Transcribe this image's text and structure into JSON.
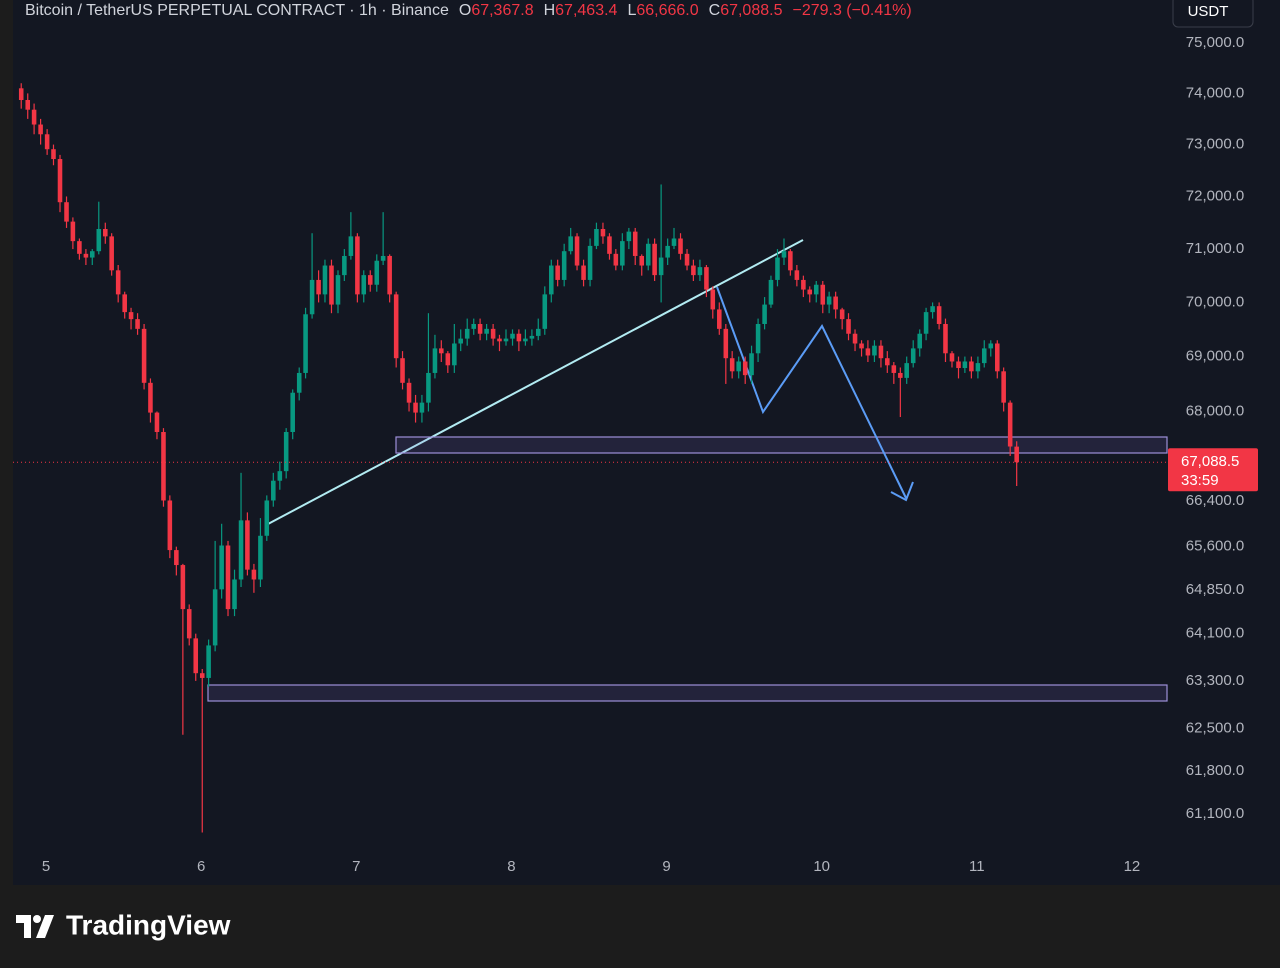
{
  "chart_data": {
    "type": "candlestick",
    "title": "Bitcoin / TetherUS PERPETUAL CONTRACT · 1h · Binance",
    "ohlc": [
      {
        "key": "O",
        "value": "67,367.8"
      },
      {
        "key": "H",
        "value": "67,463.4"
      },
      {
        "key": "L",
        "value": "66,666.0"
      },
      {
        "key": "C",
        "value": "67,088.5"
      }
    ],
    "change": "−279.3 (−0.41%)",
    "currency": "USDT",
    "countdown": "33:59",
    "up_color": "#089981",
    "down_color": "#f23645",
    "log_scale": true,
    "grid": false,
    "xlim": [
      4.787,
      12.226
    ],
    "xticks": [
      5,
      6,
      7,
      8,
      9,
      10,
      11,
      12
    ],
    "ylim": [
      60550,
      75860
    ],
    "yticks": [
      {
        "value": 75000,
        "label": "75,000.0"
      },
      {
        "value": 74000,
        "label": "74,000.0"
      },
      {
        "value": 73000,
        "label": "73,000.0"
      },
      {
        "value": 72000,
        "label": "72,000.0"
      },
      {
        "value": 71000,
        "label": "71,000.0"
      },
      {
        "value": 70000,
        "label": "70,000.0"
      },
      {
        "value": 69000,
        "label": "69,000.0"
      },
      {
        "value": 68000,
        "label": "68,000.0"
      },
      {
        "value": 66400,
        "label": "66,400.0"
      },
      {
        "value": 65600,
        "label": "65,600.0"
      },
      {
        "value": 64850,
        "label": "64,850.0"
      },
      {
        "value": 64100,
        "label": "64,100.0"
      },
      {
        "value": 63300,
        "label": "63,300.0"
      },
      {
        "value": 62500,
        "label": "62,500.0"
      },
      {
        "value": 61800,
        "label": "61,800.0"
      },
      {
        "value": 61100,
        "label": "61,100.0"
      }
    ],
    "x": [
      4.84,
      4.882,
      4.923,
      4.965,
      5.007,
      5.048,
      5.09,
      5.132,
      5.173,
      5.215,
      5.257,
      5.298,
      5.34,
      5.382,
      5.423,
      5.465,
      5.507,
      5.548,
      5.59,
      5.632,
      5.673,
      5.715,
      5.757,
      5.798,
      5.84,
      5.882,
      5.923,
      5.965,
      6.007,
      6.048,
      6.09,
      6.132,
      6.173,
      6.215,
      6.257,
      6.298,
      6.34,
      6.382,
      6.423,
      6.465,
      6.507,
      6.548,
      6.59,
      6.632,
      6.673,
      6.715,
      6.757,
      6.798,
      6.84,
      6.882,
      6.923,
      6.965,
      7.007,
      7.048,
      7.09,
      7.132,
      7.173,
      7.215,
      7.257,
      7.298,
      7.34,
      7.382,
      7.423,
      7.465,
      7.507,
      7.548,
      7.59,
      7.632,
      7.673,
      7.715,
      7.757,
      7.798,
      7.84,
      7.882,
      7.923,
      7.965,
      8.007,
      8.048,
      8.09,
      8.132,
      8.173,
      8.215,
      8.257,
      8.298,
      8.34,
      8.382,
      8.423,
      8.465,
      8.507,
      8.548,
      8.59,
      8.632,
      8.673,
      8.715,
      8.757,
      8.798,
      8.84,
      8.882,
      8.923,
      8.965,
      9.007,
      9.048,
      9.09,
      9.132,
      9.173,
      9.215,
      9.257,
      9.298,
      9.34,
      9.382,
      9.423,
      9.465,
      9.507,
      9.548,
      9.59,
      9.632,
      9.673,
      9.715,
      9.757,
      9.798,
      9.84,
      9.882,
      9.923,
      9.965,
      10.007,
      10.048,
      10.09,
      10.132,
      10.173,
      10.215,
      10.257,
      10.298,
      10.34,
      10.382,
      10.423,
      10.465,
      10.507,
      10.548,
      10.59,
      10.632,
      10.673,
      10.715,
      10.757,
      10.798,
      10.84,
      10.882,
      10.923,
      10.965,
      11.007,
      11.048,
      11.09,
      11.132,
      11.173,
      11.215,
      11.257
    ],
    "open": [
      74100,
      73870,
      73680,
      73390,
      73200,
      72910,
      72720,
      71890,
      71520,
      71150,
      70910,
      70840,
      70960,
      71380,
      71240,
      70600,
      70150,
      69820,
      69690,
      69510,
      68520,
      67980,
      67630,
      66410,
      65540,
      65280,
      64520,
      64020,
      63430,
      63350,
      63900,
      64860,
      65620,
      64520,
      65030,
      66060,
      65200,
      65030,
      65790,
      66410,
      66760,
      66930,
      67630,
      68340,
      68700,
      69780,
      70420,
      70150,
      70690,
      69960,
      70510,
      70870,
      71240,
      70150,
      70510,
      70330,
      70780,
      70870,
      70150,
      68970,
      68520,
      68160,
      67980,
      68160,
      68700,
      69150,
      69060,
      68840,
      69240,
      69330,
      69510,
      69600,
      69420,
      69510,
      69330,
      69280,
      69330,
      69420,
      69280,
      69330,
      69380,
      69510,
      70150,
      70690,
      70420,
      70960,
      71240,
      70690,
      70420,
      71060,
      71380,
      71240,
      70910,
      70690,
      71150,
      71330,
      70870,
      70690,
      71100,
      70510,
      70840,
      71060,
      71200,
      70910,
      70690,
      70510,
      70660,
      70240,
      69870,
      69510,
      68970,
      68730,
      68910,
      68660,
      69060,
      69600,
      69960,
      70420,
      70840,
      70960,
      70600,
      70420,
      70240,
      70150,
      70330,
      69960,
      70110,
      69870,
      69690,
      69420,
      69240,
      69150,
      69020,
      69200,
      68970,
      68840,
      68700,
      68610,
      68880,
      69150,
      69420,
      69820,
      69930,
      69600,
      69060,
      68910,
      68790,
      68910,
      68730,
      68880,
      69150,
      69240,
      68730,
      68160,
      67367.8
    ],
    "high": [
      74200,
      74000,
      73800,
      73500,
      73300,
      73000,
      72800,
      72000,
      71600,
      71200,
      71000,
      71000,
      71900,
      71500,
      71300,
      70700,
      70200,
      69900,
      69800,
      69600,
      68600,
      68000,
      67700,
      66500,
      65600,
      65300,
      64600,
      64100,
      63500,
      64000,
      65700,
      66000,
      65700,
      65200,
      66900,
      66200,
      65300,
      66100,
      66500,
      66900,
      67100,
      67700,
      68400,
      68800,
      69900,
      71300,
      70600,
      70800,
      70800,
      70600,
      71000,
      71700,
      71300,
      70600,
      70600,
      70900,
      71700,
      70900,
      70200,
      69100,
      68600,
      68300,
      68300,
      69800,
      69400,
      69300,
      69100,
      69600,
      69500,
      69700,
      69700,
      69700,
      69600,
      69600,
      69400,
      69500,
      69500,
      69500,
      69500,
      69500,
      69700,
      70300,
      70800,
      70800,
      71100,
      71400,
      71300,
      70800,
      71200,
      71500,
      71500,
      71300,
      71000,
      71300,
      71400,
      71400,
      70900,
      71200,
      71200,
      72230,
      71200,
      71400,
      71300,
      71000,
      70800,
      70800,
      70700,
      70300,
      70000,
      69600,
      69100,
      69000,
      69000,
      69200,
      69700,
      70100,
      70500,
      71000,
      71200,
      71000,
      70700,
      70500,
      70300,
      70400,
      70400,
      70200,
      70200,
      69900,
      69800,
      69500,
      69300,
      69300,
      69300,
      69300,
      69100,
      68900,
      68800,
      69000,
      69300,
      69500,
      69900,
      70000,
      70000,
      69700,
      69100,
      69000,
      69000,
      69000,
      69000,
      69300,
      69300,
      69300,
      68800,
      68200,
      67463.4
    ],
    "low": [
      73700,
      73500,
      73200,
      73000,
      72800,
      72600,
      71700,
      71400,
      71000,
      70800,
      70700,
      70700,
      70900,
      71100,
      70500,
      70000,
      69700,
      69500,
      69400,
      68400,
      67800,
      67500,
      66300,
      65400,
      65100,
      62400,
      63900,
      63300,
      60800,
      63200,
      63800,
      64700,
      64400,
      64400,
      64900,
      65100,
      64800,
      64900,
      65700,
      66300,
      66600,
      66800,
      67500,
      68200,
      68600,
      69700,
      70000,
      70000,
      69800,
      69800,
      70400,
      70800,
      70000,
      70000,
      70200,
      70200,
      70700,
      70000,
      68800,
      68400,
      68000,
      67800,
      67800,
      68000,
      68600,
      68900,
      68700,
      68700,
      69100,
      69200,
      69400,
      69300,
      69300,
      69200,
      69100,
      69200,
      69200,
      69100,
      69200,
      69200,
      69300,
      69400,
      70000,
      70300,
      70300,
      70900,
      70600,
      70300,
      70300,
      71000,
      71100,
      70800,
      70600,
      70600,
      71000,
      70700,
      70500,
      70600,
      70400,
      70000,
      70700,
      71000,
      70800,
      70600,
      70400,
      70400,
      70100,
      69700,
      69400,
      68500,
      68600,
      68600,
      68500,
      68500,
      68900,
      69500,
      69900,
      70300,
      70700,
      70500,
      70300,
      70100,
      70000,
      70000,
      69800,
      69800,
      69700,
      69500,
      69300,
      69100,
      69000,
      68900,
      68900,
      68800,
      68700,
      68500,
      67900,
      68500,
      68800,
      69000,
      69300,
      69700,
      69500,
      68900,
      68800,
      68600,
      68700,
      68600,
      68600,
      68800,
      69000,
      68600,
      68000,
      67200,
      66666
    ],
    "close": [
      73870,
      73680,
      73390,
      73200,
      72910,
      72720,
      71890,
      71520,
      71150,
      70910,
      70840,
      70960,
      71380,
      71240,
      70600,
      70150,
      69820,
      69690,
      69510,
      68520,
      67980,
      67630,
      66410,
      65540,
      65280,
      64520,
      64020,
      63430,
      63350,
      63900,
      64860,
      65620,
      64520,
      65030,
      66060,
      65200,
      65030,
      65790,
      66410,
      66760,
      66930,
      67630,
      68340,
      68700,
      69780,
      70420,
      70150,
      70690,
      69960,
      70510,
      70870,
      71240,
      70150,
      70510,
      70330,
      70780,
      70870,
      70150,
      68970,
      68520,
      68160,
      67980,
      68160,
      68700,
      69150,
      69060,
      68840,
      69240,
      69330,
      69510,
      69600,
      69420,
      69510,
      69330,
      69280,
      69330,
      69420,
      69280,
      69330,
      69380,
      69510,
      70150,
      70690,
      70420,
      70960,
      71240,
      70690,
      70420,
      71060,
      71380,
      71240,
      70910,
      70690,
      71150,
      71330,
      70870,
      70690,
      71100,
      70510,
      70840,
      71060,
      71200,
      70910,
      70690,
      70510,
      70660,
      70240,
      69870,
      69510,
      68970,
      68730,
      68910,
      68660,
      69060,
      69600,
      69960,
      70420,
      70840,
      70960,
      70600,
      70420,
      70240,
      70150,
      70330,
      69960,
      70110,
      69870,
      69690,
      69420,
      69240,
      69150,
      69020,
      69200,
      68970,
      68840,
      68700,
      68610,
      68880,
      69150,
      69420,
      69820,
      69930,
      69600,
      69060,
      68910,
      68790,
      68910,
      68730,
      68880,
      69150,
      69240,
      68730,
      68160,
      67370,
      67088.5
    ]
  },
  "brand": "TradingView"
}
